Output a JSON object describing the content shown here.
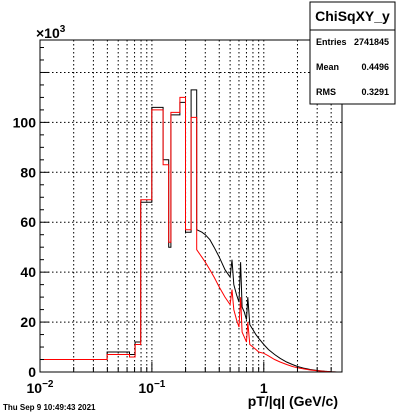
{
  "chart_data": {
    "type": "line",
    "title": "ChiSqXY_y",
    "xlabel": "pT/|q| (GeV/c)",
    "ylabel": "",
    "x_scale": "log",
    "xlim": [
      0.01,
      5
    ],
    "ylim": [
      0,
      133000
    ],
    "y_multiplier": "×10",
    "y_multiplier_exp": "3",
    "x_tick_labels": [
      {
        "value": 0.01,
        "base": "10",
        "exp": "−2"
      },
      {
        "value": 0.1,
        "base": "10",
        "exp": "−1"
      },
      {
        "value": 1,
        "base": "1",
        "exp": ""
      }
    ],
    "y_tick_labels": [
      {
        "value": 0,
        "label": "0"
      },
      {
        "value": 20000,
        "label": "20"
      },
      {
        "value": 40000,
        "label": "40"
      },
      {
        "value": 60000,
        "label": "60"
      },
      {
        "value": 80000,
        "label": "80"
      },
      {
        "value": 100000,
        "label": "100"
      }
    ],
    "grid": true,
    "stats": {
      "rows": [
        {
          "label": "Entries",
          "value": "2741845"
        },
        {
          "label": "Mean",
          "value": "0.4496"
        },
        {
          "label": "RMS",
          "value": "0.3291"
        }
      ]
    },
    "series": [
      {
        "color": "#000000",
        "points": [
          [
            0.01,
            5000
          ],
          [
            0.0398,
            5000
          ],
          [
            0.0398,
            8000
          ],
          [
            0.0631,
            8000
          ],
          [
            0.0631,
            7000
          ],
          [
            0.0708,
            7000
          ],
          [
            0.0708,
            12000
          ],
          [
            0.0794,
            12000
          ],
          [
            0.0794,
            68000
          ],
          [
            0.0998,
            68000
          ],
          [
            0.0998,
            106000
          ],
          [
            0.1259,
            106000
          ],
          [
            0.1259,
            85000
          ],
          [
            0.1413,
            85000
          ],
          [
            0.1413,
            50000
          ],
          [
            0.1479,
            50000
          ],
          [
            0.1479,
            103000
          ],
          [
            0.1778,
            103000
          ],
          [
            0.1778,
            108000
          ],
          [
            0.1995,
            108000
          ],
          [
            0.1995,
            56000
          ],
          [
            0.2239,
            56000
          ],
          [
            0.2239,
            113000
          ],
          [
            0.2512,
            113000
          ],
          [
            0.2512,
            57000
          ],
          [
            0.28,
            56000
          ],
          [
            0.3,
            55000
          ],
          [
            0.33,
            53000
          ],
          [
            0.36,
            50000
          ],
          [
            0.4,
            46000
          ],
          [
            0.45,
            41000
          ],
          [
            0.5,
            38000
          ],
          [
            0.52,
            45000
          ],
          [
            0.54,
            35000
          ],
          [
            0.57,
            31000
          ],
          [
            0.6,
            28000
          ],
          [
            0.62,
            44000
          ],
          [
            0.64,
            26000
          ],
          [
            0.67,
            24000
          ],
          [
            0.7,
            21000
          ],
          [
            0.72,
            30000
          ],
          [
            0.75,
            19000
          ],
          [
            0.8,
            17000
          ],
          [
            0.85,
            15000
          ],
          [
            0.9,
            13500
          ],
          [
            1,
            11000
          ],
          [
            1.1,
            9000
          ],
          [
            1.25,
            7000
          ],
          [
            1.4,
            5500
          ],
          [
            1.6,
            4000
          ],
          [
            1.8,
            3000
          ],
          [
            2,
            2200
          ],
          [
            2.3,
            1500
          ],
          [
            2.6,
            1000
          ],
          [
            3,
            600
          ],
          [
            3.5,
            300
          ],
          [
            4,
            100
          ],
          [
            4.5,
            0
          ]
        ]
      },
      {
        "color": "#ff0000",
        "points": [
          [
            0.01,
            5000
          ],
          [
            0.0398,
            5000
          ],
          [
            0.0398,
            7000
          ],
          [
            0.0631,
            7000
          ],
          [
            0.0631,
            6000
          ],
          [
            0.0708,
            6000
          ],
          [
            0.0708,
            11000
          ],
          [
            0.0794,
            11000
          ],
          [
            0.0794,
            69000
          ],
          [
            0.0998,
            69000
          ],
          [
            0.0998,
            105000
          ],
          [
            0.1259,
            105000
          ],
          [
            0.1259,
            83000
          ],
          [
            0.1413,
            83000
          ],
          [
            0.1413,
            52000
          ],
          [
            0.1479,
            52000
          ],
          [
            0.1479,
            104000
          ],
          [
            0.1778,
            104000
          ],
          [
            0.1778,
            110000
          ],
          [
            0.1995,
            110000
          ],
          [
            0.1995,
            57000
          ],
          [
            0.2239,
            57000
          ],
          [
            0.2239,
            102000
          ],
          [
            0.2512,
            102000
          ],
          [
            0.2512,
            49000
          ],
          [
            0.28,
            46000
          ],
          [
            0.3,
            44000
          ],
          [
            0.33,
            41000
          ],
          [
            0.36,
            38000
          ],
          [
            0.4,
            34000
          ],
          [
            0.45,
            30000
          ],
          [
            0.5,
            27000
          ],
          [
            0.52,
            33000
          ],
          [
            0.54,
            25000
          ],
          [
            0.57,
            21000
          ],
          [
            0.6,
            18000
          ],
          [
            0.62,
            30000
          ],
          [
            0.64,
            16000
          ],
          [
            0.67,
            14000
          ],
          [
            0.7,
            12000
          ],
          [
            0.72,
            20000
          ],
          [
            0.75,
            11000
          ],
          [
            0.8,
            10000
          ],
          [
            0.85,
            9000
          ],
          [
            0.9,
            8000
          ],
          [
            1,
            7500
          ],
          [
            1.1,
            6500
          ],
          [
            1.25,
            5000
          ],
          [
            1.4,
            4000
          ],
          [
            1.6,
            3000
          ],
          [
            1.8,
            2200
          ],
          [
            2,
            1700
          ],
          [
            2.3,
            1200
          ],
          [
            2.6,
            800
          ],
          [
            3,
            500
          ],
          [
            3.5,
            250
          ],
          [
            4,
            80
          ],
          [
            4.5,
            0
          ]
        ]
      }
    ]
  },
  "footer": {
    "timestamp": "Thu Sep  9 10:49:43 2021"
  }
}
